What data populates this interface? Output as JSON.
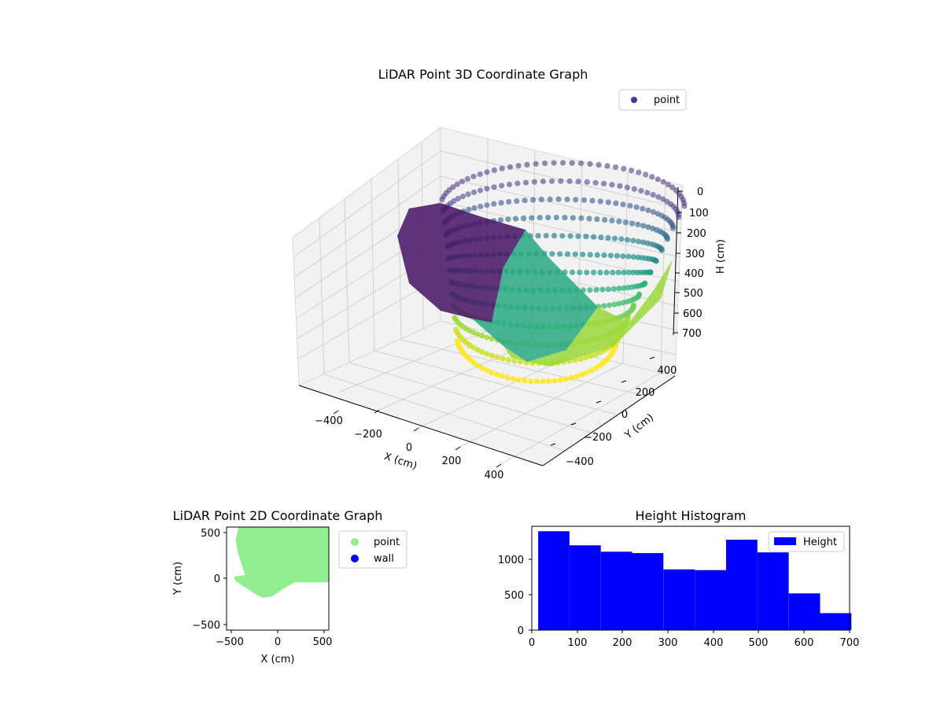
{
  "colors": {
    "viridis_dark": "#440154",
    "viridis_mid": "#21918c",
    "viridis_light": "#fde725",
    "legend_point_3d": "#3b3b8f",
    "point_2d": "#90ee90",
    "wall": "#0000ff",
    "hist_bar": "#0000ff",
    "pane_face": "#f2f2f2",
    "grid": "#d0d0d0"
  },
  "chart_data": [
    {
      "type": "scatter3d",
      "title": "LiDAR Point 3D Coordinate Graph",
      "xlabel": "X (cm)",
      "ylabel": "Y (cm)",
      "zlabel": "H (cm)",
      "xticks": [
        "−400",
        "−200",
        "0",
        "200",
        "400"
      ],
      "yticks": [
        "−400",
        "−200",
        "0",
        "200",
        "400"
      ],
      "zticks": [
        "0",
        "100",
        "200",
        "300",
        "400",
        "500",
        "600",
        "700"
      ],
      "xlim": [
        -550,
        550
      ],
      "ylim": [
        -550,
        550
      ],
      "zlim": [
        0,
        700
      ],
      "z_inverted": true,
      "colormap": "viridis",
      "legend": [
        "point"
      ],
      "legend_location": "upper right",
      "shape": "bowl-shaped curved wall sweeping around the scanner, deepest (yellow, ~700 cm) at the front, shallow (purple, ~0 cm) along the back rim",
      "rim_columns": 40,
      "rim_rows": 12
    },
    {
      "type": "scatter",
      "title": "LiDAR Point 2D Coordinate Graph",
      "xlabel": "X (cm)",
      "ylabel": "Y (cm)",
      "xticks": [
        "−500",
        "0",
        "500"
      ],
      "yticks": [
        "500",
        "0",
        "−500"
      ],
      "xlim": [
        -550,
        550
      ],
      "ylim": [
        -550,
        550
      ],
      "series": [
        {
          "name": "point",
          "color": "#90ee90",
          "region": [
            [
              -420,
              560
            ],
            [
              560,
              560
            ],
            [
              560,
              -40
            ],
            [
              180,
              -40
            ],
            [
              60,
              -110
            ],
            [
              -60,
              -190
            ],
            [
              -160,
              -205
            ],
            [
              -250,
              -160
            ],
            [
              -340,
              -100
            ],
            [
              -460,
              -20
            ],
            [
              -470,
              20
            ],
            [
              -350,
              40
            ],
            [
              -430,
              280
            ],
            [
              -450,
              420
            ],
            [
              -420,
              560
            ]
          ]
        },
        {
          "name": "wall",
          "color": "#0000ff",
          "points": []
        }
      ],
      "legend": [
        "point",
        "wall"
      ],
      "legend_location": "outside right"
    },
    {
      "type": "histogram",
      "title": "Height Histogram",
      "xlabel": "",
      "ylabel": "",
      "bins": [
        14,
        83,
        152,
        221,
        290,
        359,
        428,
        497,
        566,
        635,
        704
      ],
      "values": [
        1400,
        1200,
        1110,
        1090,
        860,
        850,
        1280,
        1100,
        520,
        240
      ],
      "xticks": [
        "0",
        "100",
        "200",
        "300",
        "400",
        "500",
        "600",
        "700"
      ],
      "yticks": [
        "0",
        "500",
        "1000"
      ],
      "xlim": [
        0,
        700
      ],
      "ylim": [
        0,
        1470
      ],
      "legend": [
        "Height"
      ],
      "legend_location": "upper right"
    }
  ]
}
